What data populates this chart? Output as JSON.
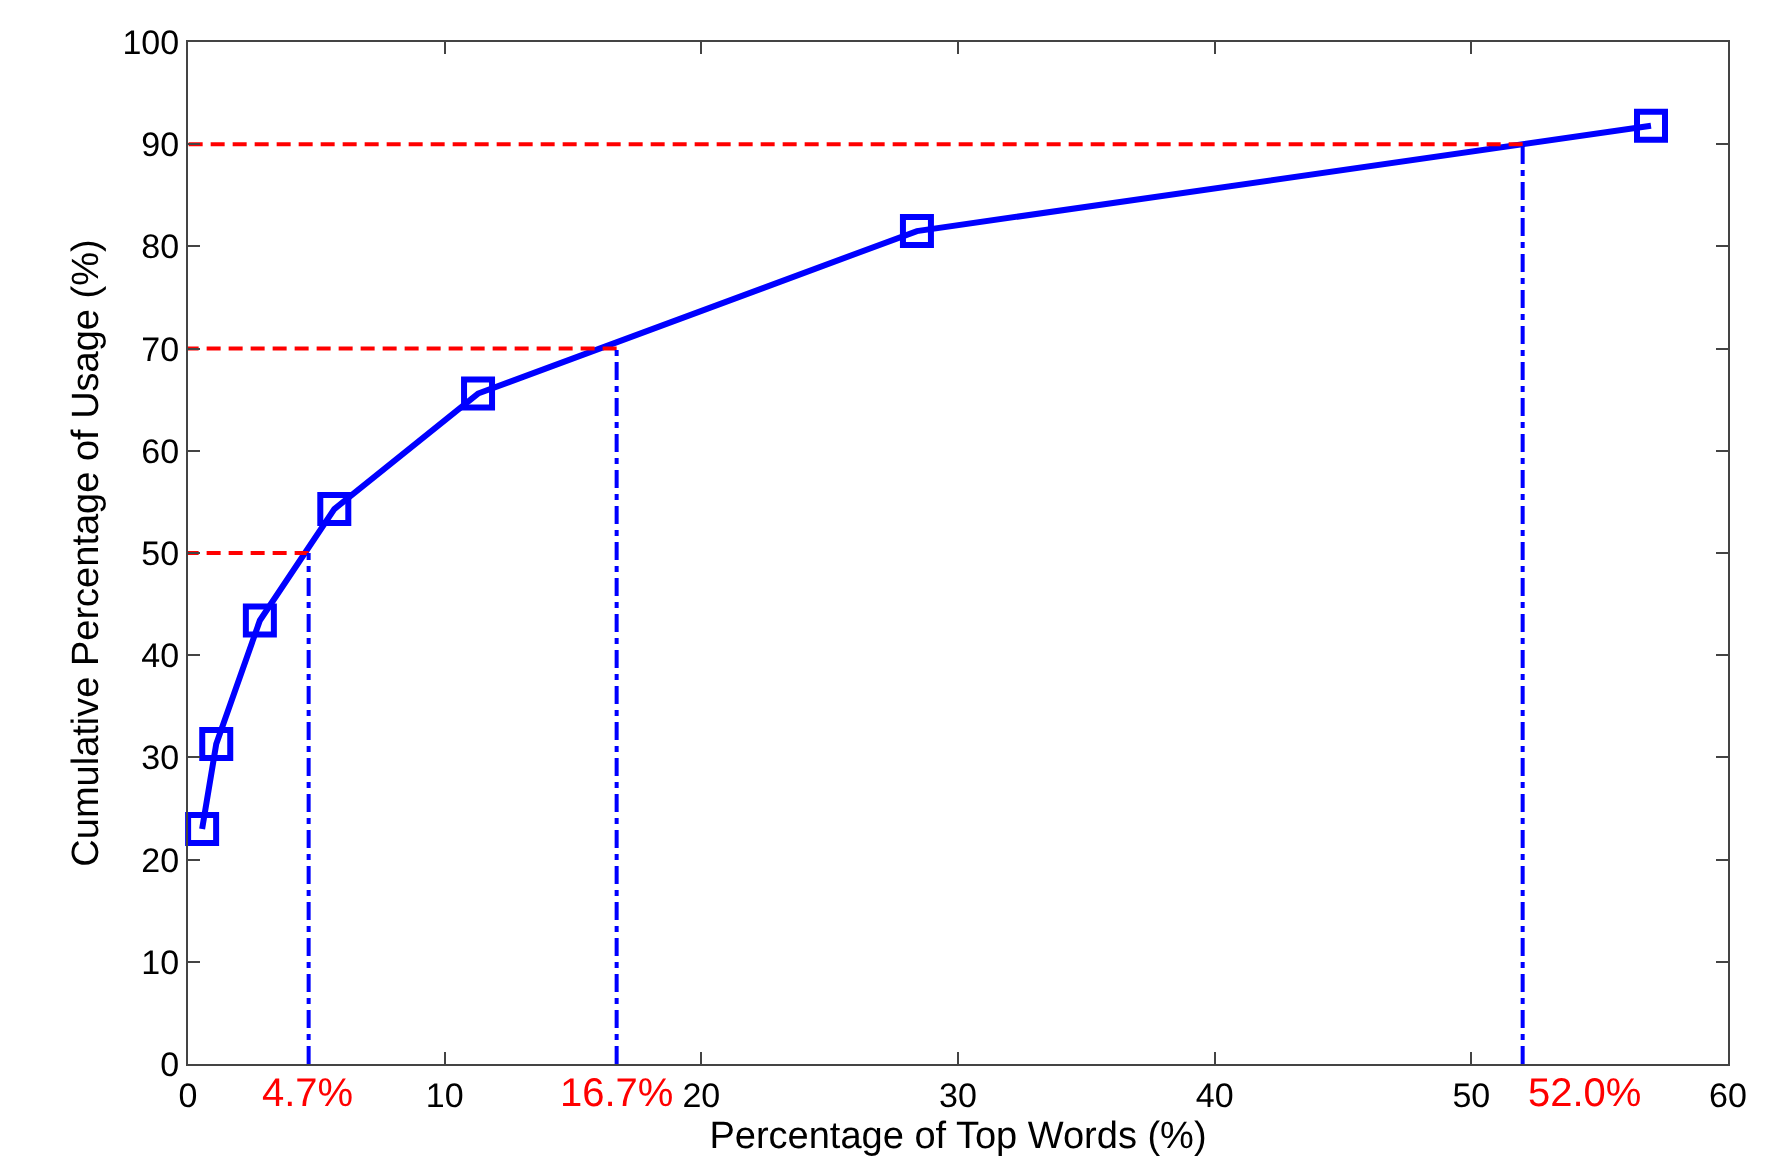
{
  "chart_data": {
    "type": "line",
    "xlabel": "Percentage of Top Words (%)",
    "ylabel": "Cumulative Percentage of Usage (%)",
    "series": [
      {
        "x": [
          0.55,
          1.1,
          2.8,
          5.7,
          11.3,
          28.4,
          57.0
        ],
        "values": [
          23.0,
          31.3,
          43.4,
          54.3,
          65.6,
          81.5,
          91.8
        ],
        "color": "#0000ff",
        "line_style": "solid",
        "marker": "square"
      },
      {
        "x": [
          4.7,
          0
        ],
        "values": [
          50,
          50
        ],
        "color": "#ff0000",
        "line_style": "dashed",
        "marker": "none"
      },
      {
        "x": [
          16.7,
          0
        ],
        "values": [
          70,
          70
        ],
        "color": "#ff0000",
        "line_style": "dashed",
        "marker": "none"
      },
      {
        "x": [
          52.0,
          0
        ],
        "values": [
          90,
          90
        ],
        "color": "#ff0000",
        "line_style": "dashed",
        "marker": "none"
      },
      {
        "x": [
          4.7,
          4.7
        ],
        "values": [
          0,
          50
        ],
        "color": "#0000ff",
        "line_style": "dashdot",
        "marker": "none"
      },
      {
        "x": [
          16.7,
          16.7
        ],
        "values": [
          0,
          70
        ],
        "color": "#0000ff",
        "line_style": "dashdot",
        "marker": "none"
      },
      {
        "x": [
          52.0,
          52.0
        ],
        "values": [
          0,
          90
        ],
        "color": "#0000ff",
        "line_style": "dashdot",
        "marker": "none"
      }
    ],
    "annotations": [
      {
        "text": "4.7%",
        "x": 4.7,
        "y": 0
      },
      {
        "text": "16.7%",
        "x": 16.7,
        "y": 0
      },
      {
        "text": "52.0%",
        "x": 52.0,
        "y": 0
      }
    ],
    "xlim": [
      0,
      60
    ],
    "xticks": [
      0,
      10,
      20,
      30,
      40,
      50,
      60
    ],
    "ylim": [
      0,
      100
    ],
    "yticks": [
      0,
      10,
      20,
      30,
      40,
      50,
      60,
      70,
      80,
      90,
      100
    ],
    "grid": false
  }
}
